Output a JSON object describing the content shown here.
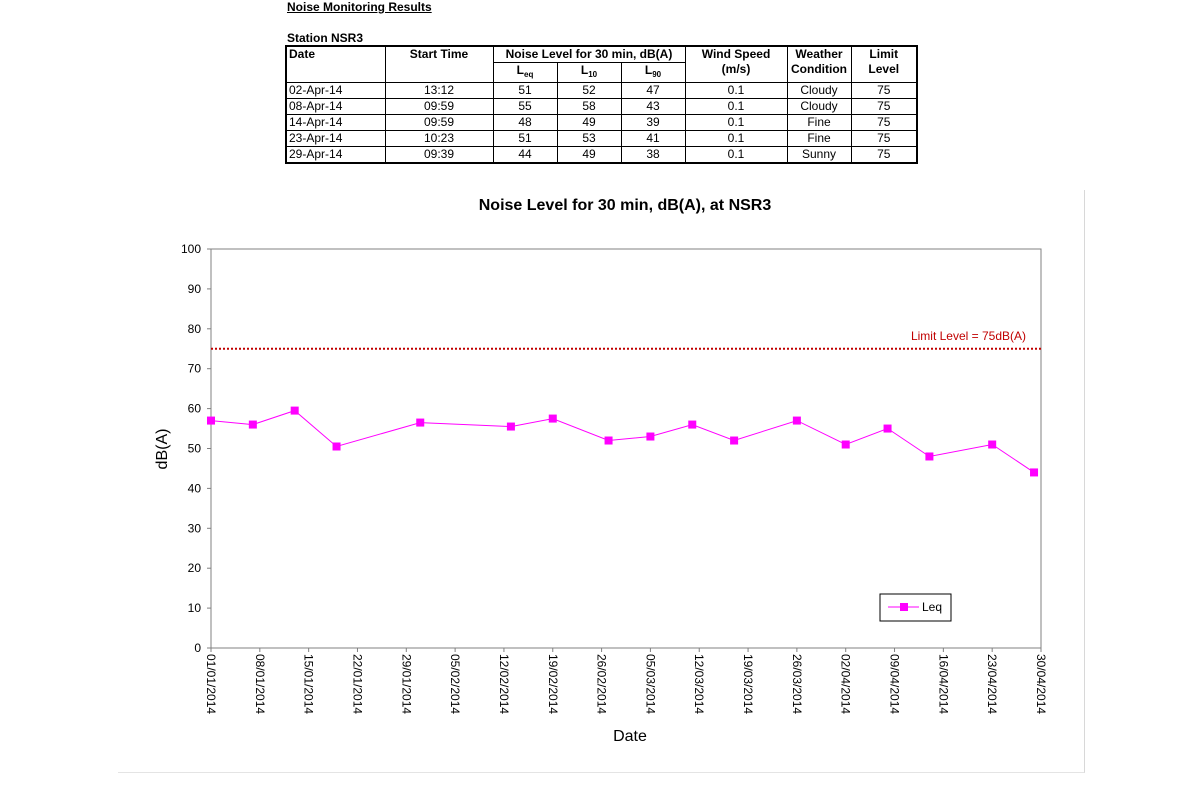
{
  "heading": "Noise Monitoring Results",
  "station": "Station NSR3",
  "table": {
    "headers": {
      "date": "Date",
      "start_time": "Start Time",
      "noise_group": "Noise Level for 30 min, dB(A)",
      "leq_main": "L",
      "leq_sub": "eq",
      "l10_main": "L",
      "l10_sub": "10",
      "l90_main": "L",
      "l90_sub": "90",
      "wind_1": "Wind Speed",
      "wind_2": "(m/s)",
      "weather_1": "Weather",
      "weather_2": "Condition",
      "limit_1": "Limit",
      "limit_2": "Level"
    },
    "rows": [
      {
        "date": "02-Apr-14",
        "time": "13:12",
        "leq": "51",
        "l10": "52",
        "l90": "47",
        "wind": "0.1",
        "weather": "Cloudy",
        "limit": "75"
      },
      {
        "date": "08-Apr-14",
        "time": "09:59",
        "leq": "55",
        "l10": "58",
        "l90": "43",
        "wind": "0.1",
        "weather": "Cloudy",
        "limit": "75"
      },
      {
        "date": "14-Apr-14",
        "time": "09:59",
        "leq": "48",
        "l10": "49",
        "l90": "39",
        "wind": "0.1",
        "weather": "Fine",
        "limit": "75"
      },
      {
        "date": "23-Apr-14",
        "time": "10:23",
        "leq": "51",
        "l10": "53",
        "l90": "41",
        "wind": "0.1",
        "weather": "Fine",
        "limit": "75"
      },
      {
        "date": "29-Apr-14",
        "time": "09:39",
        "leq": "44",
        "l10": "49",
        "l90": "38",
        "wind": "0.1",
        "weather": "Sunny",
        "limit": "75"
      }
    ]
  },
  "chart_data": {
    "type": "line",
    "title": "Noise Level for 30 min, dB(A), at NSR3",
    "xlabel": "Date",
    "ylabel": "dB(A)",
    "ylim": [
      0,
      100
    ],
    "yticks": [
      0,
      10,
      20,
      30,
      40,
      50,
      60,
      70,
      80,
      90,
      100
    ],
    "xlim": [
      "2014-01-01",
      "2014-04-30"
    ],
    "xticks": [
      "01/01/2014",
      "08/01/2014",
      "15/01/2014",
      "22/01/2014",
      "29/01/2014",
      "05/02/2014",
      "12/02/2014",
      "19/02/2014",
      "26/02/2014",
      "05/03/2014",
      "12/03/2014",
      "19/03/2014",
      "26/03/2014",
      "02/04/2014",
      "09/04/2014",
      "16/04/2014",
      "23/04/2014",
      "30/04/2014"
    ],
    "grid": false,
    "legend_position": "bottom-right",
    "series": [
      {
        "name": "Leq",
        "color": "#ff00ff",
        "marker": "square",
        "points": [
          {
            "x": "2014-01-01",
            "y": 57
          },
          {
            "x": "2014-01-07",
            "y": 56
          },
          {
            "x": "2014-01-13",
            "y": 59.5
          },
          {
            "x": "2014-01-19",
            "y": 50.5
          },
          {
            "x": "2014-01-31",
            "y": 56.5
          },
          {
            "x": "2014-02-13",
            "y": 55.5
          },
          {
            "x": "2014-02-19",
            "y": 57.5
          },
          {
            "x": "2014-02-27",
            "y": 52
          },
          {
            "x": "2014-03-05",
            "y": 53
          },
          {
            "x": "2014-03-11",
            "y": 56
          },
          {
            "x": "2014-03-17",
            "y": 52
          },
          {
            "x": "2014-03-26",
            "y": 57
          },
          {
            "x": "2014-04-02",
            "y": 51
          },
          {
            "x": "2014-04-08",
            "y": 55
          },
          {
            "x": "2014-04-14",
            "y": 48
          },
          {
            "x": "2014-04-23",
            "y": 51
          },
          {
            "x": "2014-04-29",
            "y": 44
          }
        ]
      }
    ],
    "reference_line": {
      "y": 75,
      "label": "Limit Level  = 75dB(A)",
      "color": "#c00000",
      "style": "dotted"
    }
  }
}
